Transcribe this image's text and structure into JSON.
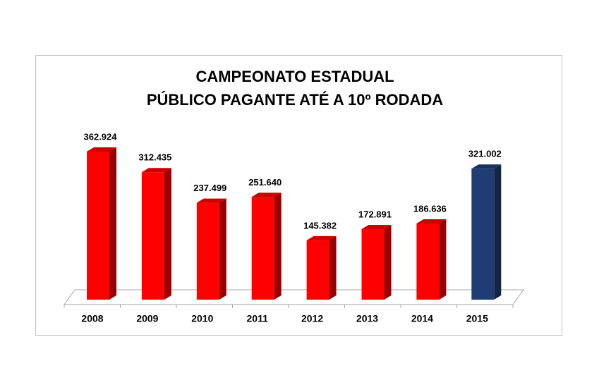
{
  "chart_data": {
    "type": "bar3d",
    "title": "CAMPEONATO ESTADUAL",
    "subtitle": "PÚBLICO PAGANTE ATÉ A 10º RODADA",
    "categories": [
      "2008",
      "2009",
      "2010",
      "2011",
      "2012",
      "2013",
      "2014",
      "2015"
    ],
    "values": [
      362924,
      312435,
      237499,
      251640,
      145382,
      172891,
      186636,
      321002
    ],
    "value_labels": [
      "362.924",
      "312.435",
      "237.499",
      "251.640",
      "145.382",
      "172.891",
      "186.636",
      "321.002"
    ],
    "colors": [
      "#ff0000",
      "#ff0000",
      "#ff0000",
      "#ff0000",
      "#ff0000",
      "#ff0000",
      "#ff0000",
      "#1f3d73"
    ]
  }
}
